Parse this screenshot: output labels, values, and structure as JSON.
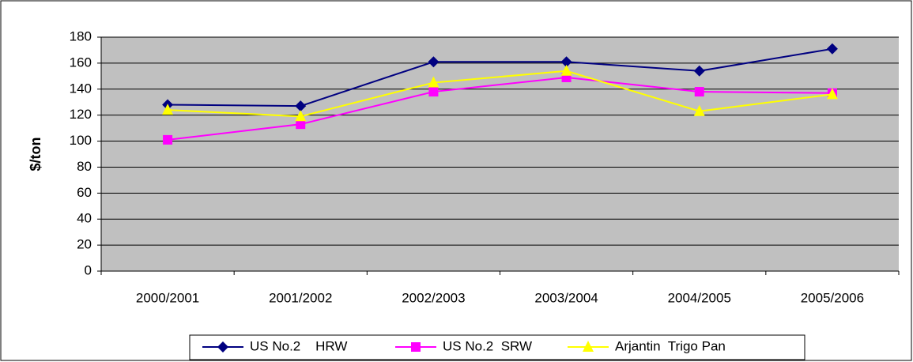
{
  "chart_data": {
    "type": "line",
    "y_label": "$/ton",
    "categories": [
      "2000/2001",
      "2001/2002",
      "2002/2003",
      "2003/2004",
      "2004/2005",
      "2005/2006"
    ],
    "series": [
      {
        "name": "US No.2    HRW",
        "color": "#000080",
        "marker": "diamond",
        "values": [
          128,
          127,
          161,
          161,
          154,
          171
        ]
      },
      {
        "name": "US No.2  SRW",
        "color": "#ff00ff",
        "marker": "square",
        "values": [
          101,
          113,
          138,
          149,
          138,
          137
        ]
      },
      {
        "name": "Arjantin  Trigo Pan",
        "color": "#ffff00",
        "marker": "triangle",
        "values": [
          124,
          119,
          145,
          154,
          123,
          136
        ]
      }
    ],
    "ylim": [
      0,
      180
    ],
    "yticks": [
      0,
      20,
      40,
      60,
      80,
      100,
      120,
      140,
      160,
      180
    ],
    "grid": true,
    "legend": "bottom"
  }
}
